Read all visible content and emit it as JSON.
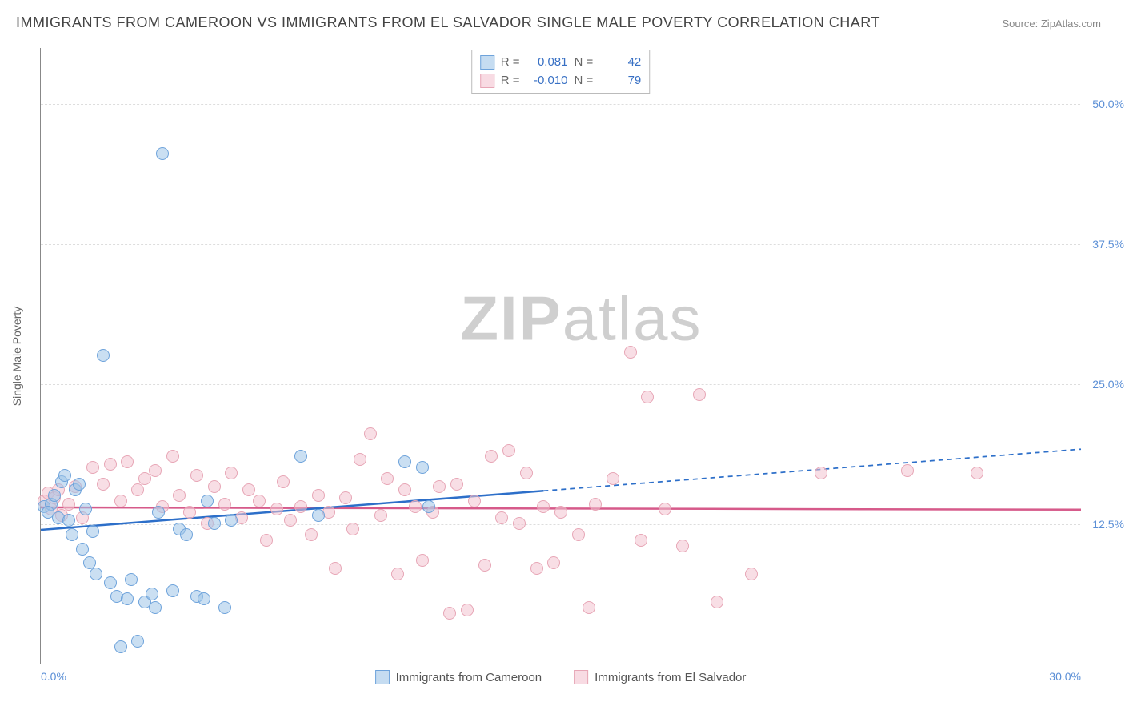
{
  "title": "IMMIGRANTS FROM CAMEROON VS IMMIGRANTS FROM EL SALVADOR SINGLE MALE POVERTY CORRELATION CHART",
  "source": "Source: ZipAtlas.com",
  "watermark_zip": "ZIP",
  "watermark_atlas": "atlas",
  "chart": {
    "type": "scatter",
    "y_axis_title": "Single Male Poverty",
    "background_color": "#ffffff",
    "grid_color": "#dddddd",
    "grid_style": "dashed",
    "axis_color": "#888888",
    "xlim": [
      0,
      30
    ],
    "ylim": [
      0,
      55
    ],
    "x_ticks": [
      {
        "pos": 0,
        "label": "0.0%"
      },
      {
        "pos": 30,
        "label": "30.0%"
      }
    ],
    "y_ticks": [
      {
        "pos": 12.5,
        "label": "12.5%"
      },
      {
        "pos": 25.0,
        "label": "25.0%"
      },
      {
        "pos": 37.5,
        "label": "37.5%"
      },
      {
        "pos": 50.0,
        "label": "50.0%"
      }
    ],
    "tick_label_color": "#5b8fd6",
    "tick_fontsize": 14,
    "title_fontsize": 18,
    "marker_radius": 8,
    "marker_opacity": 0.55
  },
  "legend_bottom": {
    "series_a": "Immigrants from Cameroon",
    "series_b": "Immigrants from El Salvador"
  },
  "stats": {
    "r_label": "R =",
    "n_label": "N =",
    "series_a": {
      "r": "0.081",
      "n": "42"
    },
    "series_b": {
      "r": "-0.010",
      "n": "79"
    }
  },
  "series_a": {
    "name": "Immigrants from Cameroon",
    "fill_color": "rgba(158,196,232,0.55)",
    "stroke_color": "#6ea3db",
    "trend": {
      "color": "#2d6fc9",
      "width": 2.5,
      "solid_x_end": 14.5,
      "x1": 0,
      "y1": 12.0,
      "x2": 30,
      "y2": 19.2
    },
    "points": [
      {
        "x": 0.1,
        "y": 14.0
      },
      {
        "x": 0.3,
        "y": 14.2
      },
      {
        "x": 0.2,
        "y": 13.5
      },
      {
        "x": 0.4,
        "y": 15.0
      },
      {
        "x": 0.5,
        "y": 13.0
      },
      {
        "x": 0.6,
        "y": 16.2
      },
      {
        "x": 0.7,
        "y": 16.8
      },
      {
        "x": 0.8,
        "y": 12.8
      },
      {
        "x": 0.9,
        "y": 11.5
      },
      {
        "x": 1.0,
        "y": 15.5
      },
      {
        "x": 1.1,
        "y": 16.0
      },
      {
        "x": 1.2,
        "y": 10.2
      },
      {
        "x": 1.3,
        "y": 13.8
      },
      {
        "x": 1.4,
        "y": 9.0
      },
      {
        "x": 1.5,
        "y": 11.8
      },
      {
        "x": 1.6,
        "y": 8.0
      },
      {
        "x": 1.8,
        "y": 27.5
      },
      {
        "x": 2.0,
        "y": 7.2
      },
      {
        "x": 2.2,
        "y": 6.0
      },
      {
        "x": 2.3,
        "y": 1.5
      },
      {
        "x": 2.5,
        "y": 5.8
      },
      {
        "x": 2.6,
        "y": 7.5
      },
      {
        "x": 2.8,
        "y": 2.0
      },
      {
        "x": 3.0,
        "y": 5.5
      },
      {
        "x": 3.2,
        "y": 6.2
      },
      {
        "x": 3.3,
        "y": 5.0
      },
      {
        "x": 3.4,
        "y": 13.5
      },
      {
        "x": 3.5,
        "y": 45.5
      },
      {
        "x": 3.8,
        "y": 6.5
      },
      {
        "x": 4.0,
        "y": 12.0
      },
      {
        "x": 4.2,
        "y": 11.5
      },
      {
        "x": 4.5,
        "y": 6.0
      },
      {
        "x": 4.7,
        "y": 5.8
      },
      {
        "x": 4.8,
        "y": 14.5
      },
      {
        "x": 5.0,
        "y": 12.5
      },
      {
        "x": 5.3,
        "y": 5.0
      },
      {
        "x": 5.5,
        "y": 12.8
      },
      {
        "x": 7.5,
        "y": 18.5
      },
      {
        "x": 8.0,
        "y": 13.2
      },
      {
        "x": 10.5,
        "y": 18.0
      },
      {
        "x": 11.0,
        "y": 17.5
      },
      {
        "x": 11.2,
        "y": 14.0
      }
    ]
  },
  "series_b": {
    "name": "Immigrants from El Salvador",
    "fill_color": "rgba(243,195,208,0.55)",
    "stroke_color": "#e7a6b6",
    "trend": {
      "color": "#d65a8a",
      "width": 2.5,
      "x1": 0,
      "y1": 14.0,
      "x2": 30,
      "y2": 13.8
    },
    "points": [
      {
        "x": 0.1,
        "y": 14.5
      },
      {
        "x": 0.2,
        "y": 15.2
      },
      {
        "x": 0.3,
        "y": 13.8
      },
      {
        "x": 0.4,
        "y": 14.8
      },
      {
        "x": 0.5,
        "y": 15.5
      },
      {
        "x": 0.6,
        "y": 13.2
      },
      {
        "x": 0.8,
        "y": 14.2
      },
      {
        "x": 1.0,
        "y": 15.8
      },
      {
        "x": 1.2,
        "y": 13.0
      },
      {
        "x": 1.5,
        "y": 17.5
      },
      {
        "x": 1.8,
        "y": 16.0
      },
      {
        "x": 2.0,
        "y": 17.8
      },
      {
        "x": 2.3,
        "y": 14.5
      },
      {
        "x": 2.5,
        "y": 18.0
      },
      {
        "x": 2.8,
        "y": 15.5
      },
      {
        "x": 3.0,
        "y": 16.5
      },
      {
        "x": 3.3,
        "y": 17.2
      },
      {
        "x": 3.5,
        "y": 14.0
      },
      {
        "x": 3.8,
        "y": 18.5
      },
      {
        "x": 4.0,
        "y": 15.0
      },
      {
        "x": 4.3,
        "y": 13.5
      },
      {
        "x": 4.5,
        "y": 16.8
      },
      {
        "x": 4.8,
        "y": 12.5
      },
      {
        "x": 5.0,
        "y": 15.8
      },
      {
        "x": 5.3,
        "y": 14.2
      },
      {
        "x": 5.5,
        "y": 17.0
      },
      {
        "x": 5.8,
        "y": 13.0
      },
      {
        "x": 6.0,
        "y": 15.5
      },
      {
        "x": 6.3,
        "y": 14.5
      },
      {
        "x": 6.5,
        "y": 11.0
      },
      {
        "x": 6.8,
        "y": 13.8
      },
      {
        "x": 7.0,
        "y": 16.2
      },
      {
        "x": 7.2,
        "y": 12.8
      },
      {
        "x": 7.5,
        "y": 14.0
      },
      {
        "x": 7.8,
        "y": 11.5
      },
      {
        "x": 8.0,
        "y": 15.0
      },
      {
        "x": 8.3,
        "y": 13.5
      },
      {
        "x": 8.5,
        "y": 8.5
      },
      {
        "x": 8.8,
        "y": 14.8
      },
      {
        "x": 9.0,
        "y": 12.0
      },
      {
        "x": 9.2,
        "y": 18.2
      },
      {
        "x": 9.5,
        "y": 20.5
      },
      {
        "x": 9.8,
        "y": 13.2
      },
      {
        "x": 10.0,
        "y": 16.5
      },
      {
        "x": 10.3,
        "y": 8.0
      },
      {
        "x": 10.5,
        "y": 15.5
      },
      {
        "x": 10.8,
        "y": 14.0
      },
      {
        "x": 11.0,
        "y": 9.2
      },
      {
        "x": 11.3,
        "y": 13.5
      },
      {
        "x": 11.5,
        "y": 15.8
      },
      {
        "x": 11.8,
        "y": 4.5
      },
      {
        "x": 12.0,
        "y": 16.0
      },
      {
        "x": 12.3,
        "y": 4.8
      },
      {
        "x": 12.5,
        "y": 14.5
      },
      {
        "x": 12.8,
        "y": 8.8
      },
      {
        "x": 13.0,
        "y": 18.5
      },
      {
        "x": 13.3,
        "y": 13.0
      },
      {
        "x": 13.5,
        "y": 19.0
      },
      {
        "x": 13.8,
        "y": 12.5
      },
      {
        "x": 14.0,
        "y": 17.0
      },
      {
        "x": 14.3,
        "y": 8.5
      },
      {
        "x": 14.5,
        "y": 14.0
      },
      {
        "x": 14.8,
        "y": 9.0
      },
      {
        "x": 15.0,
        "y": 13.5
      },
      {
        "x": 15.5,
        "y": 11.5
      },
      {
        "x": 15.8,
        "y": 5.0
      },
      {
        "x": 16.0,
        "y": 14.2
      },
      {
        "x": 16.5,
        "y": 16.5
      },
      {
        "x": 17.0,
        "y": 27.8
      },
      {
        "x": 17.3,
        "y": 11.0
      },
      {
        "x": 17.5,
        "y": 23.8
      },
      {
        "x": 18.0,
        "y": 13.8
      },
      {
        "x": 18.5,
        "y": 10.5
      },
      {
        "x": 19.0,
        "y": 24.0
      },
      {
        "x": 19.5,
        "y": 5.5
      },
      {
        "x": 20.5,
        "y": 8.0
      },
      {
        "x": 22.5,
        "y": 17.0
      },
      {
        "x": 25.0,
        "y": 17.2
      },
      {
        "x": 27.0,
        "y": 17.0
      }
    ]
  }
}
